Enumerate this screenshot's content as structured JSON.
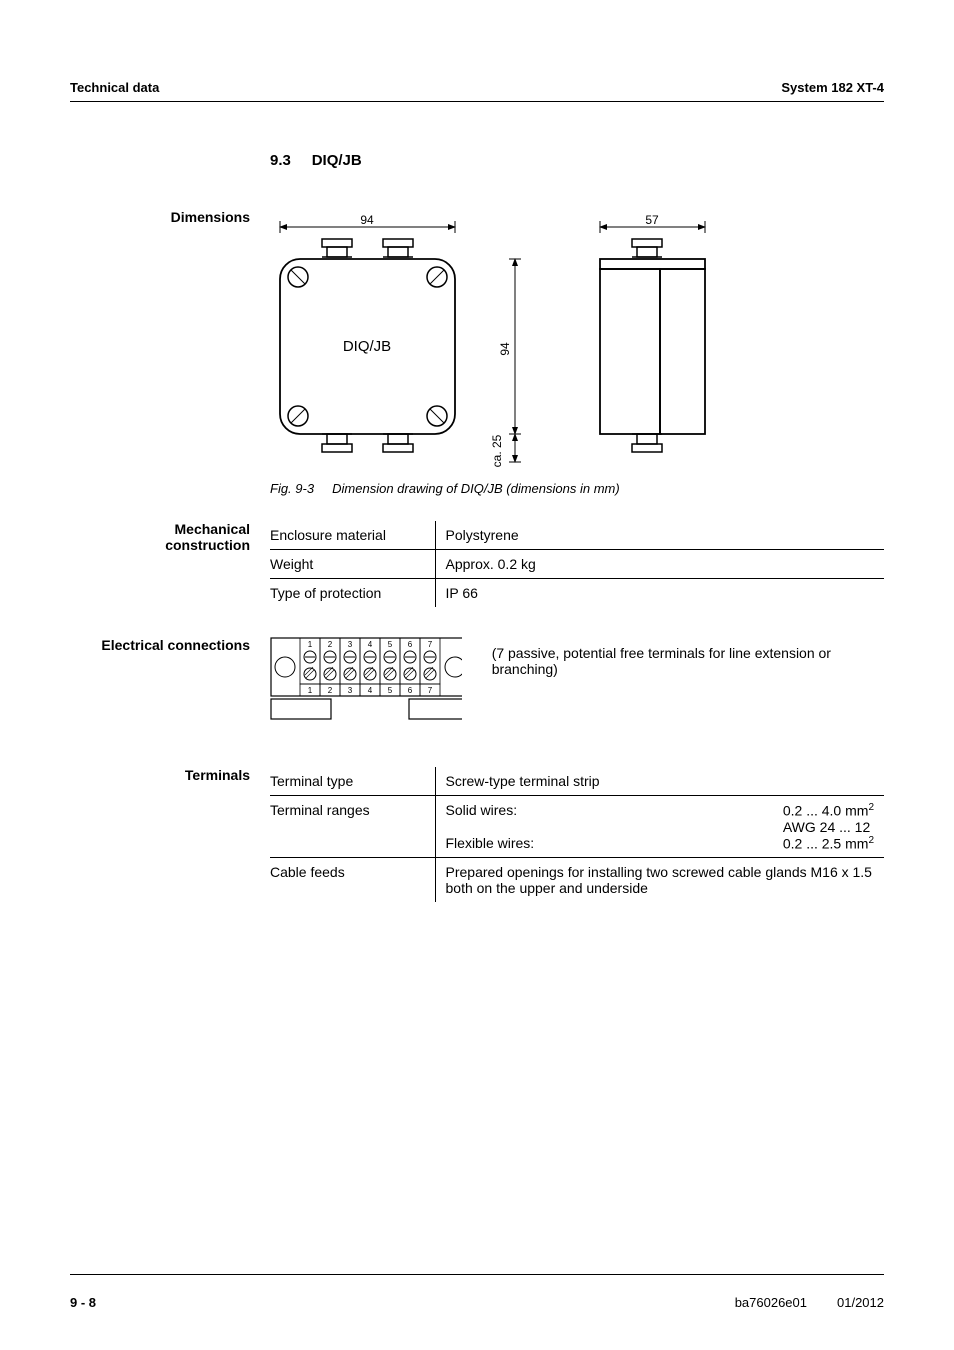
{
  "header": {
    "left": "Technical data",
    "right": "System 182 XT-4"
  },
  "section": {
    "number": "9.3",
    "title": "DIQ/JB"
  },
  "dimensions": {
    "label": "Dimensions",
    "drawing": {
      "front_width": 94,
      "side_width": 57,
      "height": 94,
      "depth_label": "ca. 25",
      "box_label": "DIQ/JB",
      "stroke_color": "#000000",
      "fill_color": "#ffffff",
      "label_fontsize": 12
    },
    "caption_prefix": "Fig. 9-3",
    "caption_text": "Dimension drawing of DIQ/JB (dimensions in mm)"
  },
  "mechanical": {
    "label_line1": "Mechanical",
    "label_line2": "construction",
    "rows": [
      {
        "prop": "Enclosure material",
        "val": "Polystyrene"
      },
      {
        "prop": "Weight",
        "val": "Approx. 0.2 kg"
      },
      {
        "prop": "Type of protection",
        "val": "IP 66"
      }
    ]
  },
  "electrical": {
    "label": "Electrical connections",
    "terminal_count": 7,
    "note": "(7 passive, potential free terminals for line extension or branching)"
  },
  "terminals": {
    "label": "Terminals",
    "rows": [
      {
        "prop": "Terminal type",
        "val_html": "Screw-type terminal strip"
      },
      {
        "prop": "Terminal ranges",
        "val_html": "<div style='display:flex;justify-content:space-between'><span>Solid wires:</span><span>0.2 ... 4.0 mm<sup>2</sup><br>AWG 24 ... 12</span></div><div style='display:flex;justify-content:space-between'><span>Flexible wires:</span><span>0.2 ... 2.5 mm<sup>2</sup></span></div>"
      },
      {
        "prop": "Cable feeds",
        "val_html": "Prepared openings for installing two screwed cable glands M16 x 1.5 both on the upper and underside"
      }
    ]
  },
  "footer": {
    "page": "9 - 8",
    "doc": "ba76026e01",
    "date": "01/2012"
  }
}
